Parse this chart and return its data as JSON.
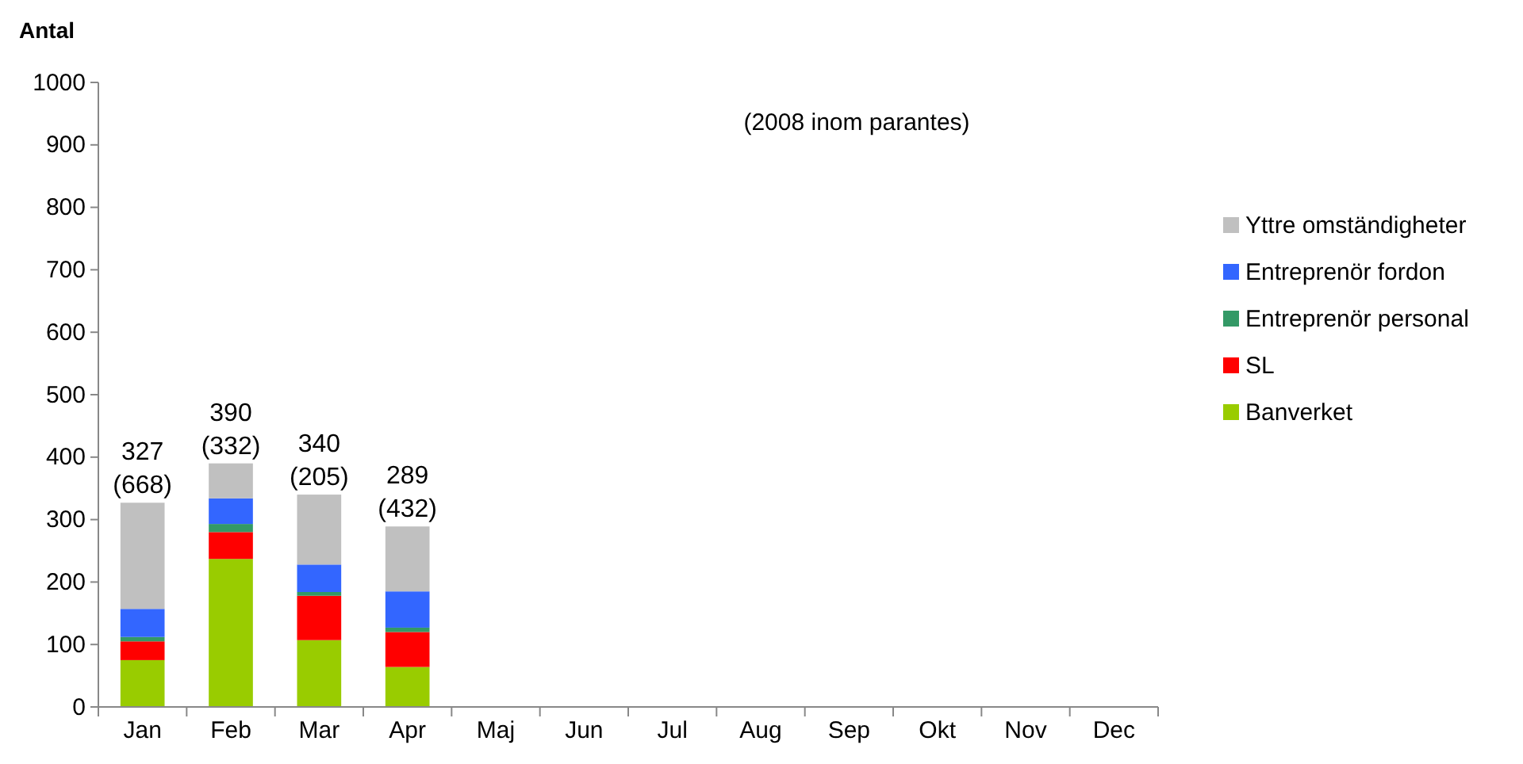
{
  "chart_data": {
    "type": "bar",
    "stacked": true,
    "ylabel": "Antal",
    "annotations": [
      "(2008 inom parantes)"
    ],
    "categories": [
      "Jan",
      "Feb",
      "Mar",
      "Apr",
      "Maj",
      "Jun",
      "Jul",
      "Aug",
      "Sep",
      "Okt",
      "Nov",
      "Dec"
    ],
    "series": [
      {
        "name": "Banverket",
        "color": "#99cc00",
        "values": [
          75,
          237,
          107,
          64,
          null,
          null,
          null,
          null,
          null,
          null,
          null,
          null
        ]
      },
      {
        "name": "SL",
        "color": "#ff0000",
        "values": [
          30,
          43,
          71,
          56,
          null,
          null,
          null,
          null,
          null,
          null,
          null,
          null
        ]
      },
      {
        "name": "Entreprenör personal",
        "color": "#339966",
        "values": [
          7,
          13,
          6,
          7,
          null,
          null,
          null,
          null,
          null,
          null,
          null,
          null
        ]
      },
      {
        "name": "Entreprenör fordon",
        "color": "#3366ff",
        "values": [
          45,
          41,
          44,
          58,
          null,
          null,
          null,
          null,
          null,
          null,
          null,
          null
        ]
      },
      {
        "name": "Yttre omständigheter",
        "color": "#c0c0c0",
        "values": [
          170,
          56,
          112,
          104,
          null,
          null,
          null,
          null,
          null,
          null,
          null,
          null
        ]
      }
    ],
    "totals": [
      "327\n(668)",
      "390\n(332)",
      "340\n(205)",
      "289\n(432)",
      null,
      null,
      null,
      null,
      null,
      null,
      null,
      null
    ],
    "ylim": [
      0,
      1000
    ],
    "yticks": [
      0,
      100,
      200,
      300,
      400,
      500,
      600,
      700,
      800,
      900,
      1000
    ],
    "grid": false,
    "legend": "right"
  }
}
